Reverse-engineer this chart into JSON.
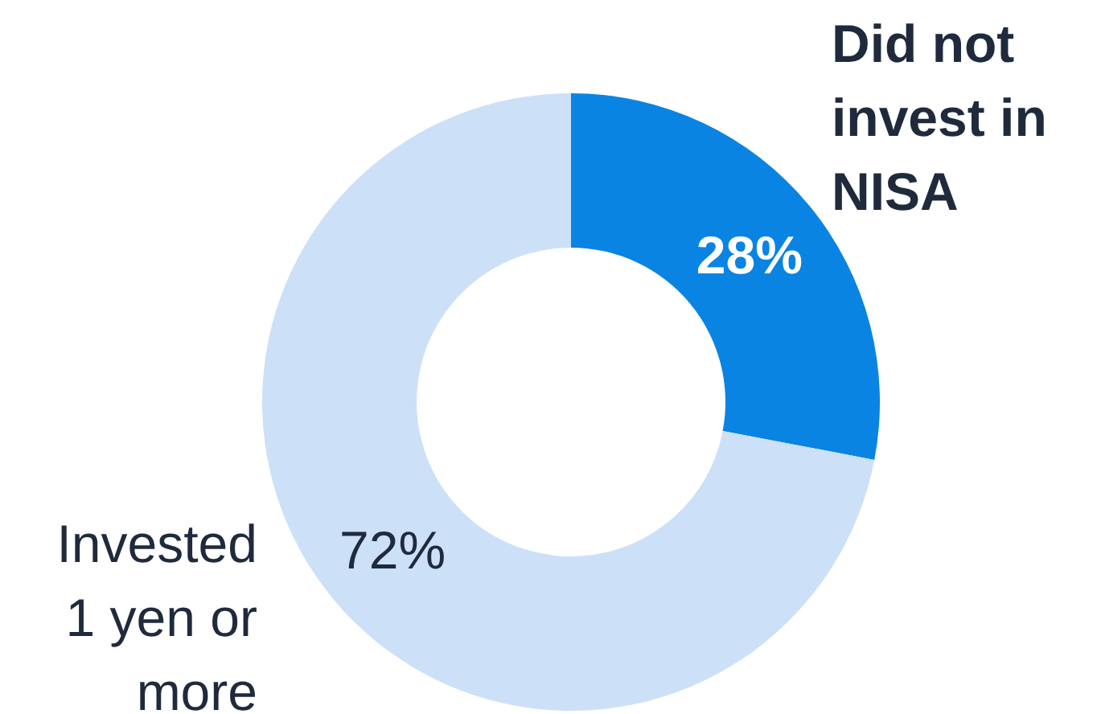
{
  "chart_data": {
    "type": "donut",
    "categories": [
      "Did not invest in NISA",
      "Invested 1 yen or more"
    ],
    "values": [
      28,
      72
    ],
    "colors": [
      "#0a84e3",
      "#cce0f8"
    ],
    "value_labels": [
      "28%",
      "72%"
    ]
  }
}
